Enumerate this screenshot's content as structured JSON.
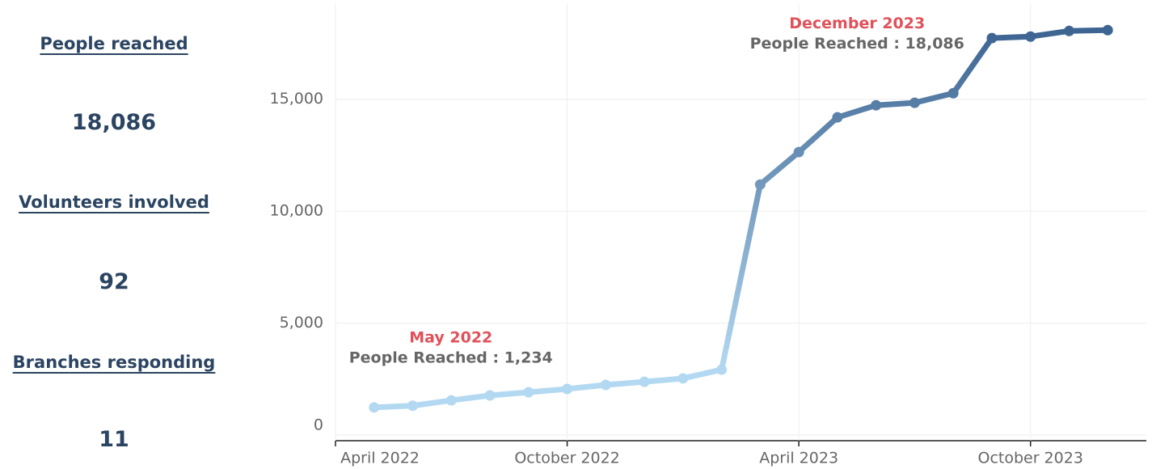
{
  "kpis": [
    {
      "label": "People reached",
      "value": "18,086"
    },
    {
      "label": "Volunteers involved",
      "value": "92"
    },
    {
      "label": "Branches responding",
      "value": "11"
    }
  ],
  "chart_data": {
    "type": "line",
    "x": [
      "2022-05",
      "2022-06",
      "2022-07",
      "2022-08",
      "2022-09",
      "2022-10",
      "2022-11",
      "2022-12",
      "2023-01",
      "2023-02",
      "2023-03",
      "2023-04",
      "2023-05",
      "2023-06",
      "2023-07",
      "2023-08",
      "2023-09",
      "2023-10",
      "2023-11",
      "2023-12"
    ],
    "series": [
      {
        "name": "People Reached",
        "color": [
          "#b3d9f2",
          "#3e6592"
        ],
        "values": [
          1234,
          1310,
          1550,
          1770,
          1910,
          2060,
          2240,
          2380,
          2530,
          2920,
          11190,
          12640,
          14190,
          14730,
          14840,
          15270,
          17730,
          17800,
          18050,
          18086
        ]
      }
    ],
    "xlim": [
      "2022-04",
      "2024-01"
    ],
    "xticks": [
      {
        "value": "2022-04",
        "label": "April 2022"
      },
      {
        "value": "2022-10",
        "label": "October 2022"
      },
      {
        "value": "2023-04",
        "label": "April 2023"
      },
      {
        "value": "2023-10",
        "label": "October 2023"
      }
    ],
    "ylim": [
      0,
      19000
    ],
    "yticks": [
      0,
      {
        "value": 5000,
        "label": "5,000"
      },
      {
        "value": 10000,
        "label": "10,000"
      },
      {
        "value": 15000,
        "label": "15,000"
      }
    ],
    "grid": true,
    "annotations": [
      {
        "x": "2022-05",
        "title": "May 2022",
        "text": "People Reached : 1,234"
      },
      {
        "x": "2023-12",
        "title": "December 2023",
        "text": "People Reached : 18,086"
      }
    ]
  }
}
